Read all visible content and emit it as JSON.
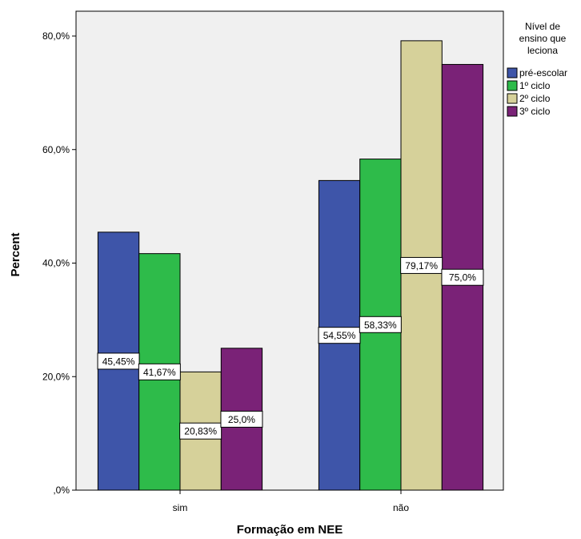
{
  "chart_data": {
    "type": "bar",
    "title": "",
    "xlabel": "Formação em NEE",
    "ylabel": "Percent",
    "categories": [
      "sim",
      "não"
    ],
    "ylim": [
      0,
      80
    ],
    "y_ticks": [
      "80,0%",
      "60,0%",
      "40,0%",
      "20,0%",
      ",0%"
    ],
    "y_tick_values": [
      80,
      60,
      40,
      20,
      0
    ],
    "legend": {
      "title_lines": [
        "Nível de",
        "ensino que",
        "leciona"
      ],
      "placement": "right"
    },
    "series": [
      {
        "name": "pré-escolar",
        "color": "#3e55a9",
        "values": [
          45.45,
          54.55
        ],
        "labels": [
          "45,45%",
          "54,55%"
        ]
      },
      {
        "name": "1º ciclo",
        "color": "#2ebb4a",
        "values": [
          41.67,
          58.33
        ],
        "labels": [
          "41,67%",
          "58,33%"
        ]
      },
      {
        "name": "2º ciclo",
        "color": "#d6d19a",
        "values": [
          20.83,
          79.17
        ],
        "labels": [
          "20,83%",
          "79,17%"
        ]
      },
      {
        "name": "3º ciclo",
        "color": "#7a2277",
        "values": [
          25.0,
          75.0
        ],
        "labels": [
          "25,0%",
          "75,0%"
        ]
      }
    ],
    "background": "#f0f0f0",
    "grid": false
  }
}
